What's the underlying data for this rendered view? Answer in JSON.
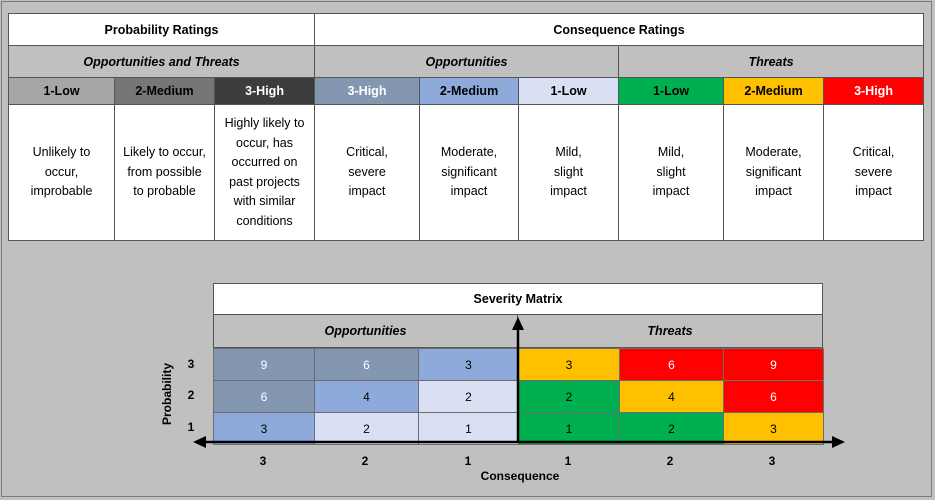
{
  "ratings": {
    "probability_header": "Probability Ratings",
    "consequence_header": "Consequence Ratings",
    "prob_sub": "Opportunities and Threats",
    "opp_sub": "Opportunities",
    "threat_sub": "Threats",
    "levels": [
      "1-Low",
      "2-Medium",
      "3-High",
      "3-High",
      "2-Medium",
      "1-Low",
      "1-Low",
      "2-Medium",
      "3-High"
    ],
    "descriptions": [
      [
        "Unlikely to",
        "occur,",
        "improbable"
      ],
      [
        "Likely to occur,",
        "from possible",
        "to probable"
      ],
      [
        "Highly likely to",
        "occur, has",
        "occurred on",
        "past projects",
        "with similar",
        "conditions"
      ],
      [
        "Critical,",
        "severe",
        "impact"
      ],
      [
        "Moderate,",
        "significant",
        "impact"
      ],
      [
        "Mild,",
        "slight",
        "impact"
      ],
      [
        "Mild,",
        "slight",
        "impact"
      ],
      [
        "Moderate,",
        "significant",
        "impact"
      ],
      [
        "Critical,",
        "severe",
        "impact"
      ]
    ],
    "colors": {
      "prob_low": "#a6a6a6",
      "prob_med": "#767676",
      "prob_high": "#3c3c3c",
      "opp_high": "#8497b0",
      "opp_med": "#8eaadb",
      "opp_low": "#dae0f3",
      "threat_low": "#00b050",
      "threat_med": "#ffc000",
      "threat_high": "#ff0000"
    }
  },
  "matrix": {
    "title": "Severity Matrix",
    "opp_label": "Opportunities",
    "threat_label": "Threats",
    "x_axis_title": "Consequence",
    "y_axis_title": "Probability",
    "col_labels": [
      "3",
      "2",
      "1",
      "1",
      "2",
      "3"
    ],
    "row_labels": [
      "3",
      "2",
      "1"
    ],
    "rows": [
      [
        "9",
        "6",
        "3",
        "3",
        "6",
        "9"
      ],
      [
        "6",
        "4",
        "2",
        "2",
        "4",
        "6"
      ],
      [
        "3",
        "2",
        "1",
        "1",
        "2",
        "3"
      ]
    ]
  }
}
